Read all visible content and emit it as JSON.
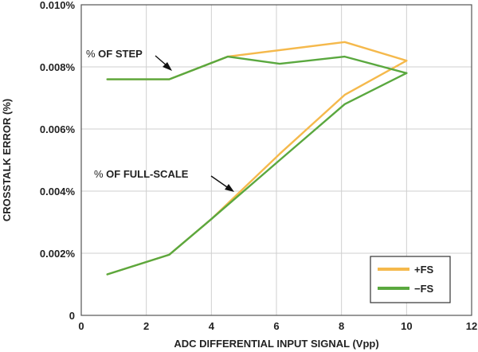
{
  "chart_data": {
    "type": "line",
    "title": "",
    "xlabel": "ADC DIFFERENTIAL INPUT SIGNAL (Vpp)",
    "ylabel": "CROSSTALK ERROR (%)",
    "xlim": [
      0,
      12
    ],
    "ylim": [
      0,
      0.01
    ],
    "x_ticks": [
      "0",
      "2",
      "4",
      "6",
      "8",
      "10",
      "12"
    ],
    "y_ticks": [
      "0",
      "0.002%",
      "0.004%",
      "0.006%",
      "0.008%",
      "0.010%"
    ],
    "grid": true,
    "legend_position": "bottom-right",
    "colors": {
      "plus_fs": "#f5b94c",
      "minus_fs": "#5aa83f"
    },
    "series": [
      {
        "name": "+FS",
        "group": "% OF STEP",
        "x": [
          0.8,
          2.7,
          4.5,
          8.1,
          10.0
        ],
        "y": [
          0.0076,
          0.0076,
          0.00833,
          0.0088,
          0.0082
        ]
      },
      {
        "name": "−FS",
        "group": "% OF STEP",
        "x": [
          0.8,
          2.7,
          4.5,
          6.1,
          8.1,
          10.0
        ],
        "y": [
          0.0076,
          0.0076,
          0.00833,
          0.0081,
          0.00833,
          0.0078
        ]
      },
      {
        "name": "+FS",
        "group": "% OF FULL-SCALE",
        "x": [
          0.8,
          2.7,
          4.0,
          6.1,
          8.1,
          10.0
        ],
        "y": [
          0.00132,
          0.00195,
          0.0031,
          0.0052,
          0.0071,
          0.0082
        ]
      },
      {
        "name": "−FS",
        "group": "% OF FULL-SCALE",
        "x": [
          0.8,
          2.7,
          4.0,
          6.1,
          8.1,
          10.0
        ],
        "y": [
          0.00132,
          0.00195,
          0.0031,
          0.005,
          0.0068,
          0.0078
        ]
      }
    ],
    "annotations": [
      {
        "text": "% OF STEP",
        "prefix": "%",
        "label": " OF STEP"
      },
      {
        "text": "% OF FULL-SCALE",
        "prefix": "%",
        "label": " OF FULL-SCALE"
      }
    ],
    "legend": [
      {
        "label": "+FS",
        "color": "#f5b94c"
      },
      {
        "label": "−FS",
        "color": "#5aa83f"
      }
    ]
  }
}
